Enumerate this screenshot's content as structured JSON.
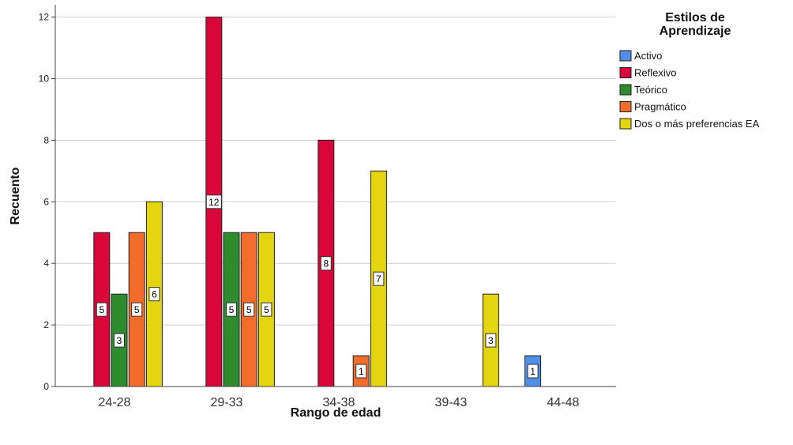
{
  "chart_data": {
    "type": "bar",
    "title": "",
    "xlabel": "Rango de edad",
    "ylabel": "Recuento",
    "ylim": [
      0,
      12.4
    ],
    "yticks": [
      0,
      2,
      4,
      6,
      8,
      10,
      12
    ],
    "grid": true,
    "legend_position": "top-right",
    "legend_title": [
      "Estilos de",
      "Aprendizaje"
    ],
    "categories": [
      "24-28",
      "29-33",
      "34-38",
      "39-43",
      "44-48"
    ],
    "series": [
      {
        "name": "Activo",
        "color": "#4f8fe6",
        "values": [
          0,
          0,
          0,
          0,
          1
        ]
      },
      {
        "name": "Reflexivo",
        "color": "#d9063a",
        "values": [
          5,
          12,
          8,
          0,
          0
        ]
      },
      {
        "name": "Teórico",
        "color": "#2e8b2e",
        "values": [
          3,
          5,
          0,
          0,
          0
        ]
      },
      {
        "name": "Pragmático",
        "color": "#f26c2c",
        "values": [
          5,
          5,
          1,
          0,
          0
        ]
      },
      {
        "name": "Dos o más preferencias EA",
        "color": "#e3d610",
        "values": [
          6,
          5,
          7,
          3,
          0
        ]
      }
    ]
  }
}
